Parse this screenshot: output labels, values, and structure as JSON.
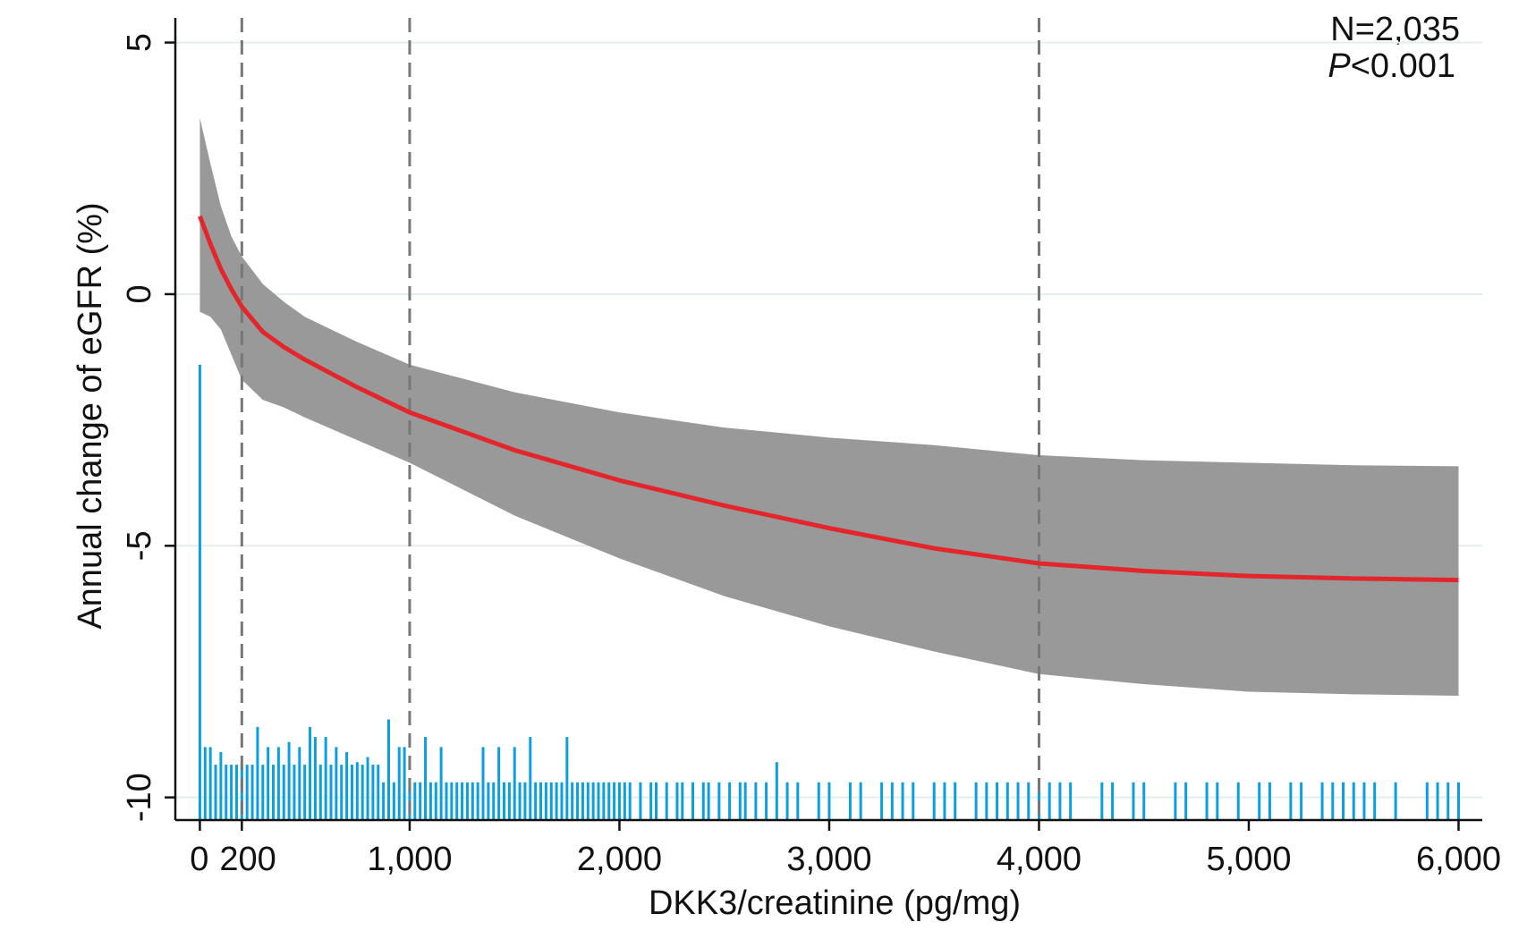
{
  "chart_data": {
    "type": "spline",
    "xlabel": "DKK3/creatinine (pg/mg)",
    "ylabel": "Annual change of eGFR (%)",
    "n_label": "N=2,035",
    "p_value": {
      "symbol": "P",
      "text": "<0.001"
    },
    "xlim": [
      -117,
      6113
    ],
    "ylim": [
      -10.45,
      5.49
    ],
    "xticks": [
      0,
      200,
      {
        "value": 1000,
        "label": "1,000"
      },
      {
        "value": 2000,
        "label": "2,000"
      },
      {
        "value": 3000,
        "label": "3,000"
      },
      {
        "value": 4000,
        "label": "4,000"
      },
      {
        "value": 5000,
        "label": "5,000"
      },
      {
        "value": 6000,
        "label": "6,000"
      }
    ],
    "yticks": [
      5,
      0,
      -5,
      -10
    ],
    "grid": true,
    "cut_points": [
      200,
      1000,
      4000
    ],
    "fit_color": "#e3262b",
    "band_color": "#999999",
    "rug_color": "#0b9fe0",
    "cut_color": "#777777",
    "x": [
      0,
      50,
      100,
      150,
      200,
      300,
      400,
      500,
      750,
      1000,
      1500,
      2000,
      2500,
      3000,
      3500,
      4000,
      4500,
      5000,
      5500,
      6000
    ],
    "fit": [
      1.55,
      1.0,
      0.5,
      0.1,
      -0.25,
      -0.75,
      -1.05,
      -1.3,
      -1.85,
      -2.35,
      -3.1,
      -3.7,
      -4.2,
      -4.65,
      -5.05,
      -5.35,
      -5.5,
      -5.6,
      -5.65,
      -5.68
    ],
    "upper": [
      3.5,
      2.6,
      1.75,
      1.15,
      0.75,
      0.2,
      -0.15,
      -0.45,
      -0.95,
      -1.4,
      -1.95,
      -2.35,
      -2.65,
      -2.85,
      -3.0,
      -3.2,
      -3.3,
      -3.35,
      -3.4,
      -3.42
    ],
    "lower": [
      -0.35,
      -0.45,
      -0.7,
      -1.2,
      -1.7,
      -2.1,
      -2.25,
      -2.45,
      -2.9,
      -3.35,
      -4.4,
      -5.25,
      -6.0,
      -6.6,
      -7.1,
      -7.55,
      -7.75,
      -7.9,
      -7.95,
      -7.98
    ],
    "rug": [
      [
        0,
        -1.4
      ],
      [
        25,
        -9.0
      ],
      [
        50,
        -9.0
      ],
      [
        75,
        -9.35
      ],
      [
        100,
        -9.1
      ],
      [
        125,
        -9.35
      ],
      [
        150,
        -9.35
      ],
      [
        175,
        -9.35
      ],
      [
        200,
        -9.35
      ],
      [
        225,
        -9.35
      ],
      [
        250,
        -9.35
      ],
      [
        275,
        -8.6
      ],
      [
        300,
        -9.35
      ],
      [
        325,
        -9.0
      ],
      [
        350,
        -9.35
      ],
      [
        375,
        -9.0
      ],
      [
        400,
        -9.35
      ],
      [
        425,
        -8.9
      ],
      [
        450,
        -9.35
      ],
      [
        475,
        -9.0
      ],
      [
        500,
        -9.35
      ],
      [
        525,
        -8.6
      ],
      [
        550,
        -8.8
      ],
      [
        575,
        -9.35
      ],
      [
        600,
        -8.8
      ],
      [
        625,
        -9.35
      ],
      [
        650,
        -9.0
      ],
      [
        675,
        -9.35
      ],
      [
        700,
        -9.1
      ],
      [
        725,
        -9.35
      ],
      [
        750,
        -9.3
      ],
      [
        775,
        -9.35
      ],
      [
        800,
        -9.2
      ],
      [
        825,
        -9.35
      ],
      [
        850,
        -9.35
      ],
      [
        875,
        -9.7
      ],
      [
        900,
        -8.45
      ],
      [
        925,
        -9.7
      ],
      [
        950,
        -9.0
      ],
      [
        975,
        -9.0
      ],
      [
        1000,
        -9.7
      ],
      [
        1025,
        -9.7
      ],
      [
        1050,
        -9.7
      ],
      [
        1075,
        -8.8
      ],
      [
        1100,
        -9.7
      ],
      [
        1125,
        -9.7
      ],
      [
        1150,
        -9.0
      ],
      [
        1175,
        -9.7
      ],
      [
        1200,
        -9.7
      ],
      [
        1225,
        -9.7
      ],
      [
        1250,
        -9.7
      ],
      [
        1275,
        -9.7
      ],
      [
        1300,
        -9.7
      ],
      [
        1325,
        -9.7
      ],
      [
        1350,
        -9.0
      ],
      [
        1375,
        -9.7
      ],
      [
        1400,
        -9.7
      ],
      [
        1425,
        -9.0
      ],
      [
        1450,
        -9.7
      ],
      [
        1475,
        -9.7
      ],
      [
        1500,
        -9.0
      ],
      [
        1525,
        -9.7
      ],
      [
        1550,
        -9.7
      ],
      [
        1575,
        -8.8
      ],
      [
        1600,
        -9.7
      ],
      [
        1625,
        -9.7
      ],
      [
        1650,
        -9.7
      ],
      [
        1675,
        -9.7
      ],
      [
        1700,
        -9.7
      ],
      [
        1725,
        -9.7
      ],
      [
        1750,
        -8.8
      ],
      [
        1775,
        -9.7
      ],
      [
        1800,
        -9.7
      ],
      [
        1825,
        -9.7
      ],
      [
        1850,
        -9.7
      ],
      [
        1875,
        -9.7
      ],
      [
        1900,
        -9.7
      ],
      [
        1925,
        -9.7
      ],
      [
        1950,
        -9.7
      ],
      [
        1975,
        -9.7
      ],
      [
        2000,
        -9.7
      ],
      [
        2025,
        -9.7
      ],
      [
        2050,
        -9.7
      ],
      [
        2100,
        -9.7
      ],
      [
        2150,
        -9.7
      ],
      [
        2175,
        -9.7
      ],
      [
        2225,
        -9.7
      ],
      [
        2275,
        -9.7
      ],
      [
        2300,
        -9.7
      ],
      [
        2350,
        -9.7
      ],
      [
        2400,
        -9.7
      ],
      [
        2425,
        -9.7
      ],
      [
        2475,
        -9.7
      ],
      [
        2525,
        -9.7
      ],
      [
        2575,
        -9.7
      ],
      [
        2600,
        -9.7
      ],
      [
        2650,
        -9.7
      ],
      [
        2700,
        -9.7
      ],
      [
        2750,
        -9.3
      ],
      [
        2800,
        -9.7
      ],
      [
        2850,
        -9.7
      ],
      [
        2950,
        -9.7
      ],
      [
        3000,
        -9.7
      ],
      [
        3100,
        -9.7
      ],
      [
        3150,
        -9.7
      ],
      [
        3250,
        -9.7
      ],
      [
        3300,
        -9.7
      ],
      [
        3350,
        -9.7
      ],
      [
        3400,
        -9.7
      ],
      [
        3500,
        -9.7
      ],
      [
        3550,
        -9.7
      ],
      [
        3600,
        -9.7
      ],
      [
        3700,
        -9.7
      ],
      [
        3750,
        -9.7
      ],
      [
        3800,
        -9.7
      ],
      [
        3850,
        -9.7
      ],
      [
        3900,
        -9.7
      ],
      [
        3950,
        -9.7
      ],
      [
        4000,
        -9.7
      ],
      [
        4050,
        -9.7
      ],
      [
        4100,
        -9.7
      ],
      [
        4150,
        -9.7
      ],
      [
        4300,
        -9.7
      ],
      [
        4350,
        -9.7
      ],
      [
        4450,
        -9.7
      ],
      [
        4500,
        -9.7
      ],
      [
        4650,
        -9.7
      ],
      [
        4700,
        -9.7
      ],
      [
        4800,
        -9.7
      ],
      [
        4850,
        -9.7
      ],
      [
        4950,
        -9.7
      ],
      [
        5050,
        -9.7
      ],
      [
        5100,
        -9.7
      ],
      [
        5200,
        -9.7
      ],
      [
        5250,
        -9.7
      ],
      [
        5350,
        -9.7
      ],
      [
        5400,
        -9.7
      ],
      [
        5450,
        -9.7
      ],
      [
        5500,
        -9.7
      ],
      [
        5550,
        -9.7
      ],
      [
        5600,
        -9.7
      ],
      [
        5700,
        -9.7
      ],
      [
        5850,
        -9.7
      ],
      [
        5900,
        -9.7
      ],
      [
        5950,
        -9.7
      ],
      [
        6000,
        -9.7
      ]
    ]
  }
}
